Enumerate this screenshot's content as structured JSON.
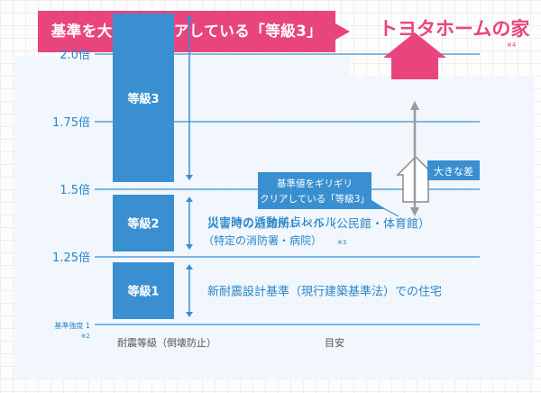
{
  "headline": "基準を大きくクリアしている「等級3」",
  "brand": {
    "name": "トヨタホームの家",
    "note": "※4"
  },
  "colors": {
    "pink": "#e8457e",
    "blue": "#3a8fd1",
    "line": "#3a8fd1",
    "text": "#2a86c9",
    "gray": "#9a9a9a",
    "panel": "#eef6fb"
  },
  "chart_data": {
    "type": "bar",
    "title": "基準を大きくクリアしている「等級3」",
    "ylim": [
      1,
      2.2
    ],
    "y_ticks": [
      {
        "value": 1,
        "label": "基準強度 1",
        "note": "※2"
      },
      {
        "value": 1.25,
        "label": "1.25倍"
      },
      {
        "value": 1.5,
        "label": "1.5倍"
      },
      {
        "value": 1.75,
        "label": "1.75倍"
      },
      {
        "value": 2.0,
        "label": "2.0倍"
      }
    ],
    "bars": [
      {
        "name": "等級1",
        "from": 1.0,
        "to": 1.25
      },
      {
        "name": "等級2",
        "from": 1.25,
        "to": 1.5
      },
      {
        "name": "等級3",
        "from": 1.5,
        "to": 2.15
      }
    ],
    "x_labels": [
      "耐震等級（倒壊防止）",
      "目安"
    ],
    "descriptions": [
      {
        "grade": "等級3",
        "line1": "災害時の活動拠点レベル",
        "line2": "（特定の消防署・病院）",
        "note": "※3"
      },
      {
        "grade": "等級2",
        "line1": "災害時の避難所レベル（公民館・体育館）"
      },
      {
        "grade": "等級1",
        "line1": "新耐震設計基準（現行建築基準法）での住宅"
      }
    ],
    "annotations": {
      "callout_lines": [
        "基準値をギリギリ",
        "クリアしている「等級3」"
      ],
      "gap_label": "大きな差",
      "grade3_level": 1.5,
      "toyota_level": 2.18
    }
  }
}
